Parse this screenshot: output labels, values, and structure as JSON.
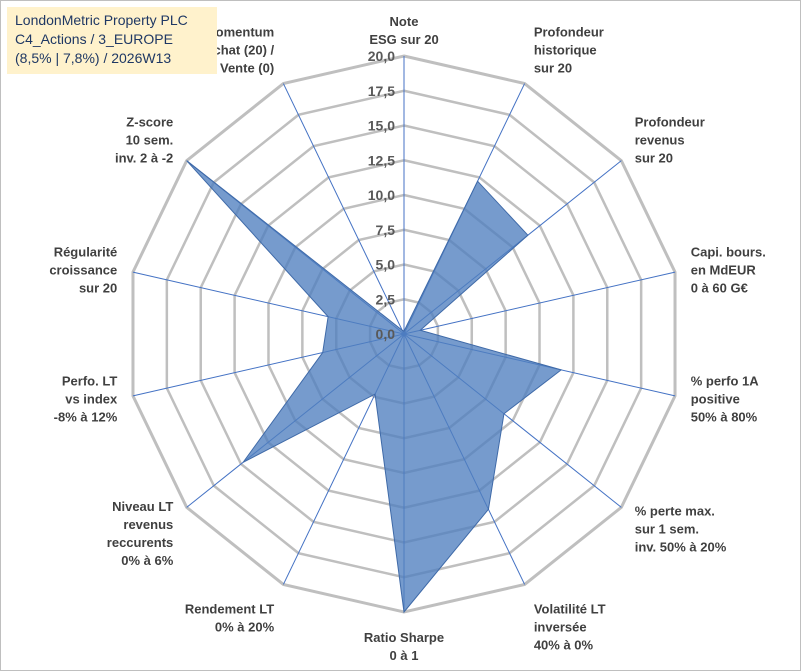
{
  "title": {
    "line1": "LondonMetric Property PLC",
    "line2": "C4_Actions / 3_EUROPE",
    "line3": "(8,5% | 7,8%) / 2026W13"
  },
  "colors": {
    "fill": "#4f7fbf",
    "stroke": "#3f6aa8",
    "grid": "#bfbfbf",
    "spoke": "#4472c4",
    "title_bg": "#fff2cc"
  },
  "chart_data": {
    "type": "radar",
    "title": "LondonMetric Property PLC",
    "ylim": [
      0,
      20
    ],
    "tick_step": 2.5,
    "tick_labels": [
      "0,0",
      "2,5",
      "5,0",
      "7,5",
      "10,0",
      "12,5",
      "15,0",
      "17,5",
      "20,0"
    ],
    "categories": [
      [
        "Note",
        "ESG sur 20"
      ],
      [
        "Profondeur",
        "historique",
        "sur 20"
      ],
      [
        "Profondeur",
        "revenus",
        "sur 20"
      ],
      [
        "Capi. bours.",
        "en MdEUR",
        "0 à 60 G€"
      ],
      [
        "% perfo 1A",
        "positive",
        "50% à 80%"
      ],
      [
        "% perte max.",
        "sur 1 sem.",
        "inv. 50% à 20%"
      ],
      [
        "Volatilité LT",
        "inversée",
        "40% à 0%"
      ],
      [
        "Ratio Sharpe",
        "0 à 1"
      ],
      [
        "Rendement LT",
        "0% à 20%"
      ],
      [
        "Niveau LT",
        "revenus",
        "reccurents",
        "0% à 6%"
      ],
      [
        "Perfo. LT",
        "vs index",
        "-8% à 12%"
      ],
      [
        "Régularité",
        "croissance",
        "sur 20"
      ],
      [
        "Z-score",
        "10 sem.",
        "inv. 2 à -2"
      ],
      [
        "Momentum",
        "Achat (20) /",
        "Vente (0)"
      ]
    ],
    "series": [
      {
        "name": "LondonMetric Property PLC",
        "values": [
          0.2,
          12.2,
          11.4,
          1.2,
          11.6,
          9.2,
          14.0,
          20.0,
          4.8,
          14.8,
          6.0,
          5.6,
          20.0,
          0.3
        ]
      }
    ]
  }
}
